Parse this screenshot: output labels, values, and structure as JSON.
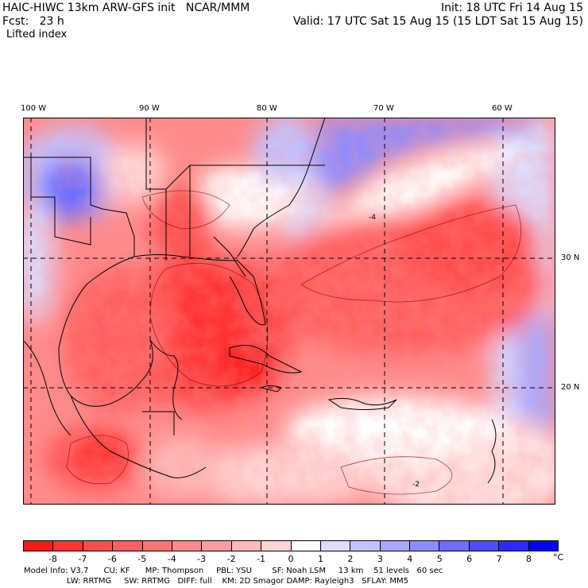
{
  "header": {
    "title": "HAIC-HIWC 13km ARW-GFS init   NCAR/MMM",
    "init": "Init: 18 UTC Fri 14 Aug 15",
    "fcst": "Fcst:   23 h",
    "valid": "Valid: 17 UTC Sat 15 Aug 15 (15 LDT Sat 15 Aug 15)",
    "field": "Lifted index"
  },
  "map": {
    "lon_labels": [
      "100 W",
      "90 W",
      "80 W",
      "70 W",
      "60 W"
    ],
    "lat_labels": [
      "30 N",
      "20 N"
    ],
    "contour_labels": [
      "-4",
      "-2"
    ]
  },
  "colorbar": {
    "unit": "°C",
    "labels": [
      "-8",
      "-7",
      "-6",
      "-5",
      "-4",
      "-3",
      "-2",
      "-1",
      "0",
      "1",
      "2",
      "3",
      "4",
      "5",
      "6",
      "7",
      "8"
    ],
    "colors": [
      "#ff1a1a",
      "#ff3333",
      "#ff4d4d",
      "#ff6161",
      "#ff7575",
      "#ff8a8a",
      "#ff9e9e",
      "#ffb8b8",
      "#ffd4d4",
      "#ffffff",
      "#dcdcff",
      "#c3c3ff",
      "#a8a8ff",
      "#8c8cff",
      "#6e6eff",
      "#4d4dff",
      "#2b2bff",
      "#0000ff"
    ]
  },
  "footer": {
    "line1": "Model Info: V3.7      CU: KF      MP: Thompson     PBL: YSU        SF: Noah LSM     13 km    51 levels   60 sec",
    "line2": "                 LW: RRTMG     SW: RRTMG   DIFF: full    KM: 2D Smagor DAMP: Rayleigh3   SFLAY: MM5"
  }
}
